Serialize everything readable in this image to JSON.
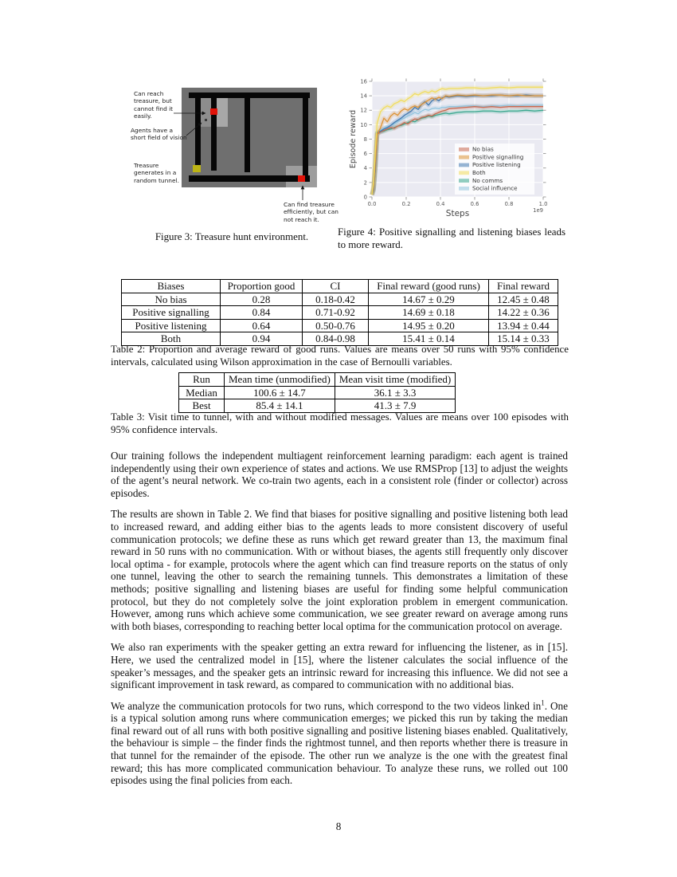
{
  "page": {
    "number": "8"
  },
  "figure3": {
    "caption": "Figure 3: Treasure hunt environment.",
    "labels": {
      "reach": "Can reach\ntreasure, but\ncannot find it\neasily.",
      "vision": "Agents have a\nshort field of vision",
      "treasure": "Treasure\ngenerates in a\nrandom tunnel.",
      "find": "Can find treasure\nefficiently, but can\nnot reach it."
    },
    "colors": {
      "background": "#6f6f6f",
      "walls": "#070707",
      "treasure_red": "#e11309",
      "agent_yellow": "#bdb414"
    }
  },
  "figure4": {
    "caption": "Figure 4: Positive signalling and listening biases leads to more reward."
  },
  "chart_data": {
    "type": "line",
    "title": "",
    "xlabel": "Steps",
    "ylabel": "Episode reward",
    "x_offset_label": "1e9",
    "xlim": [
      0,
      1
    ],
    "ylim": [
      0,
      16
    ],
    "xticks": [
      "0.0",
      "0.2",
      "0.4",
      "0.6",
      "0.8",
      "1.0"
    ],
    "yticks": [
      "0",
      "2",
      "4",
      "6",
      "8",
      "10",
      "12",
      "14",
      "16"
    ],
    "grid": true,
    "background": "#eaeaf2",
    "legend_position": "lower right",
    "x": [
      0.0,
      0.01,
      0.02,
      0.03,
      0.05,
      0.07,
      0.09,
      0.11,
      0.13,
      0.15,
      0.17,
      0.19,
      0.21,
      0.23,
      0.25,
      0.27,
      0.29,
      0.31,
      0.33,
      0.35,
      0.37,
      0.39,
      0.41,
      0.43,
      0.45,
      0.5,
      0.55,
      0.6,
      0.65,
      0.7,
      0.75,
      0.8,
      0.85,
      0.9,
      0.95,
      1.0
    ],
    "series": [
      {
        "name": "No bias",
        "color": "#c9684e",
        "values": [
          0.3,
          1.0,
          4.0,
          8.7,
          9.0,
          9.2,
          9.4,
          9.6,
          9.5,
          9.8,
          10.0,
          10.3,
          10.1,
          10.5,
          10.8,
          10.7,
          11.0,
          11.1,
          11.3,
          11.2,
          11.5,
          11.7,
          11.9,
          12.0,
          12.2,
          12.3,
          12.4,
          12.5,
          12.4,
          12.5,
          12.4,
          12.5,
          12.5,
          12.5,
          12.5,
          12.5
        ]
      },
      {
        "name": "Positive signalling",
        "color": "#dd9335",
        "values": [
          0.3,
          1.5,
          5.0,
          8.6,
          9.6,
          10.9,
          10.4,
          11.2,
          11.6,
          11.3,
          11.9,
          12.2,
          12.0,
          12.4,
          12.6,
          12.4,
          12.8,
          13.1,
          13.4,
          13.7,
          13.5,
          13.8,
          13.6,
          14.0,
          13.9,
          14.1,
          14.0,
          14.1,
          14.0,
          14.1,
          14.1,
          14.0,
          14.1,
          14.0,
          14.0,
          14.0
        ]
      },
      {
        "name": "Positive listening",
        "color": "#4279b0",
        "values": [
          0.3,
          1.2,
          4.5,
          8.9,
          9.1,
          9.4,
          9.6,
          9.9,
          10.3,
          10.6,
          10.9,
          11.3,
          11.6,
          11.9,
          12.4,
          12.1,
          12.8,
          13.2,
          12.7,
          13.3,
          13.6,
          13.3,
          13.7,
          13.9,
          13.8,
          14.0,
          13.9,
          14.0,
          14.0,
          14.0,
          14.1,
          14.0,
          14.0,
          14.1,
          14.0,
          14.0
        ]
      },
      {
        "name": "Both",
        "color": "#f2dd5c",
        "values": [
          0.3,
          2.0,
          6.5,
          10.2,
          11.8,
          12.3,
          12.6,
          12.4,
          12.9,
          13.1,
          13.4,
          13.2,
          13.6,
          13.9,
          14.3,
          14.1,
          14.4,
          14.6,
          14.4,
          14.7,
          14.5,
          14.8,
          15.0,
          14.9,
          15.0,
          15.0,
          15.1,
          15.1,
          15.0,
          15.1,
          15.2,
          15.1,
          15.2,
          15.2,
          15.2,
          15.2
        ]
      },
      {
        "name": "No comms",
        "color": "#39a78e",
        "values": [
          0.3,
          0.9,
          3.8,
          8.8,
          9.0,
          9.1,
          9.3,
          9.4,
          9.6,
          9.8,
          9.9,
          10.1,
          10.3,
          10.5,
          10.4,
          10.7,
          10.9,
          11.0,
          11.2,
          11.1,
          11.3,
          11.4,
          11.5,
          11.6,
          11.5,
          11.7,
          11.8,
          11.8,
          11.9,
          11.9,
          11.8,
          11.9,
          11.9,
          12.0,
          11.9,
          12.0
        ]
      },
      {
        "name": "Social influence",
        "color": "#92c5de",
        "values": [
          0.3,
          1.1,
          4.2,
          8.8,
          9.2,
          9.5,
          9.7,
          9.9,
          10.1,
          10.4,
          10.7,
          10.9,
          11.2,
          11.4,
          11.7,
          11.5,
          11.9,
          12.1,
          12.0,
          12.2,
          12.3,
          12.2,
          12.4,
          12.4,
          12.5,
          12.5,
          12.6,
          12.6,
          12.5,
          12.6,
          12.6,
          12.7,
          12.6,
          12.7,
          12.7,
          12.7
        ]
      }
    ]
  },
  "table2": {
    "headers": [
      "Biases",
      "Proportion good",
      "CI",
      "Final reward (good runs)",
      "Final reward"
    ],
    "rows": [
      [
        "No bias",
        "0.28",
        "0.18-0.42",
        "14.67 ± 0.29",
        "12.45 ± 0.48"
      ],
      [
        "Positive signalling",
        "0.84",
        "0.71-0.92",
        "14.69 ± 0.18",
        "14.22 ± 0.36"
      ],
      [
        "Positive listening",
        "0.64",
        "0.50-0.76",
        "14.95 ± 0.20",
        "13.94 ± 0.44"
      ],
      [
        "Both",
        "0.94",
        "0.84-0.98",
        "15.41 ± 0.14",
        "15.14 ± 0.33"
      ]
    ],
    "caption": "Table 2: Proportion and average reward of good runs. Values are means over 50 runs with 95% confidence intervals, calculated using Wilson approximation in the case of Bernoulli variables."
  },
  "table3": {
    "headers": [
      "Run",
      "Mean time (unmodified)",
      "Mean visit time (modified)"
    ],
    "rows": [
      [
        "Median",
        "100.6 ± 14.7",
        "36.1 ± 3.3"
      ],
      [
        "Best",
        "85.4 ± 14.1",
        "41.3 ± 7.9"
      ]
    ],
    "caption": "Table 3: Visit time to tunnel, with and without modified messages. Values are means over 100 episodes with 95% confidence intervals."
  },
  "body": {
    "p1": "Our training follows the independent multiagent reinforcement learning paradigm: each agent is trained independently using their own experience of states and actions. We use RMSProp [13] to adjust the weights of the agent’s neural network. We co-train two agents, each in a consistent role (finder or collector) across episodes.",
    "p2": "The results are shown in Table 2. We find that biases for positive signalling and positive listening both lead to increased reward, and adding either bias to the agents leads to more consistent discovery of useful communication protocols; we define these as runs which get reward greater than 13, the maximum final reward in 50 runs with no communication. With or without biases, the agents still frequently only discover local optima - for example, protocols where the agent which can find treasure reports on the status of only one tunnel, leaving the other to search the remaining tunnels. This demonstrates a limitation of these methods; positive signalling and listening biases are useful for finding some helpful communication protocol, but they do not completely solve the joint exploration problem in emergent communication. However, among runs which achieve some communication, we see greater reward on average among runs with both biases, corresponding to reaching better local optima for the communication protocol on average.",
    "p3": "We also ran experiments with the speaker getting an extra reward for influencing the listener, as in [15]. Here, we used the centralized model in [15], where the listener calculates the social influence of the speaker’s messages, and the speaker gets an intrinsic reward for increasing this influence. We did not see a significant improvement in task reward, as compared to communication with no additional bias.",
    "p4_pre": "We analyze the communication protocols for two runs, which correspond to the two videos linked in",
    "p4_sup": "1",
    "p4_post": ". One is a typical solution among runs where communication emerges; we picked this run by taking the median final reward out of all runs with both positive signalling and positive listening biases enabled. Qualitatively, the behaviour is simple – the finder finds the rightmost tunnel, and then reports whether there is treasure in that tunnel for the remainder of the episode. The other run we analyze is the one with the greatest final reward; this has more complicated communication behaviour. To analyze these runs, we rolled out 100 episodes using the final policies from each."
  }
}
